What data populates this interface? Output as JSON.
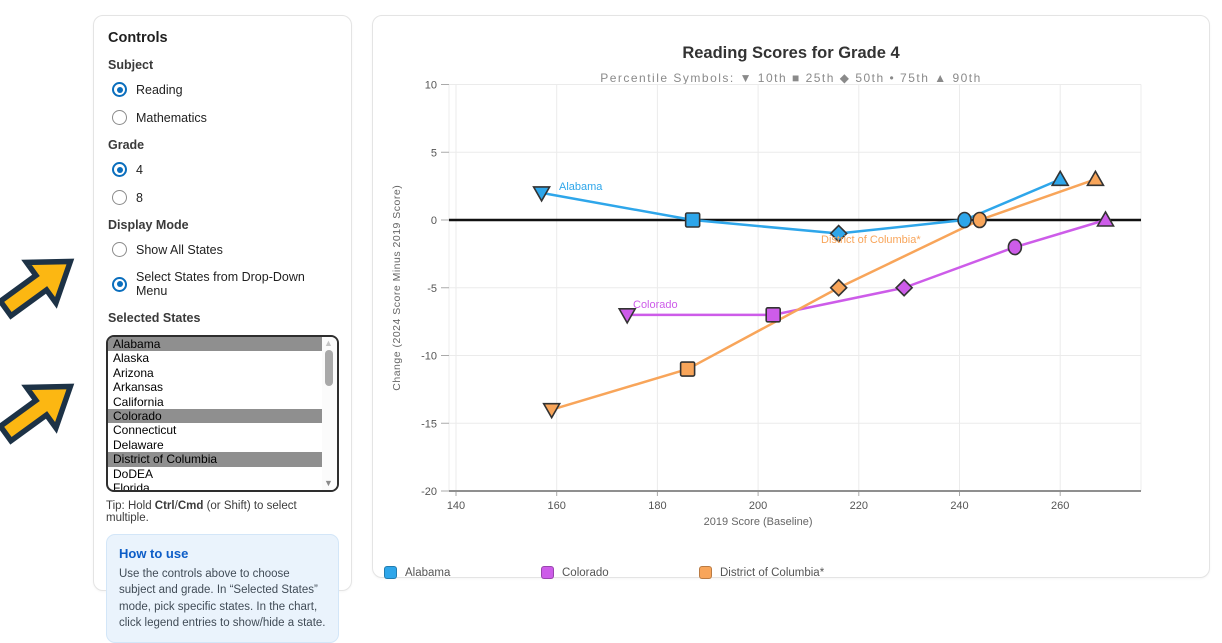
{
  "controls": {
    "title": "Controls",
    "subject": {
      "label": "Subject",
      "options": [
        {
          "label": "Reading",
          "selected": true
        },
        {
          "label": "Mathematics",
          "selected": false
        }
      ]
    },
    "grade": {
      "label": "Grade",
      "options": [
        {
          "label": "4",
          "selected": true
        },
        {
          "label": "8",
          "selected": false
        }
      ]
    },
    "display_mode": {
      "label": "Display Mode",
      "options": [
        {
          "label": "Show All States",
          "selected": false
        },
        {
          "label": "Select States from Drop-Down Menu",
          "selected": true
        }
      ]
    },
    "selected_states": {
      "label": "Selected States",
      "items": [
        {
          "label": "Alabama",
          "selected": true
        },
        {
          "label": "Alaska",
          "selected": false
        },
        {
          "label": "Arizona",
          "selected": false
        },
        {
          "label": "Arkansas",
          "selected": false
        },
        {
          "label": "California",
          "selected": false
        },
        {
          "label": "Colorado",
          "selected": true
        },
        {
          "label": "Connecticut",
          "selected": false
        },
        {
          "label": "Delaware",
          "selected": false
        },
        {
          "label": "District of Columbia",
          "selected": true
        },
        {
          "label": "DoDEA",
          "selected": false
        },
        {
          "label": "Florida",
          "selected": false
        }
      ],
      "tip": {
        "prefix": "Tip: Hold ",
        "bold1": "Ctrl",
        "separator": "/",
        "bold2": "Cmd",
        "suffix": " (or Shift) to select multiple."
      }
    },
    "how_to_use": {
      "title": "How to use",
      "body": "Use the controls above to choose subject and grade. In “Selected States” mode, pick specific states. In the chart, click legend entries to show/hide a state."
    }
  },
  "chart_data": {
    "type": "line",
    "title": "Reading Scores for Grade 4",
    "subtitle": "Percentile Symbols: ▼ 10th ■ 25th ◆ 50th • 75th ▲ 90th",
    "xlabel": "2019 Score (Baseline)",
    "ylabel": "Change (2024 Score Minus 2019 Score)",
    "xlim": [
      132,
      276
    ],
    "ylim": [
      -20,
      10
    ],
    "x_ticks": [
      140,
      160,
      180,
      200,
      220,
      240,
      260
    ],
    "y_ticks": [
      10,
      5,
      0,
      -5,
      -10,
      -15,
      -20
    ],
    "grid": true,
    "legend_position": "bottom",
    "percentiles": [
      "10th",
      "25th",
      "50th",
      "75th",
      "90th"
    ],
    "marker_shapes": [
      "triangle-down",
      "square",
      "diamond",
      "circle",
      "triangle-up"
    ],
    "series": [
      {
        "name": "Alabama",
        "color": "#2ea6ea",
        "points": [
          {
            "percentile": "10th",
            "x": 157,
            "y": 2
          },
          {
            "percentile": "25th",
            "x": 187,
            "y": 0
          },
          {
            "percentile": "50th",
            "x": 216,
            "y": -1
          },
          {
            "percentile": "75th",
            "x": 241,
            "y": 0
          },
          {
            "percentile": "90th",
            "x": 260,
            "y": 3
          }
        ]
      },
      {
        "name": "Colorado",
        "color": "#cd5ce9",
        "points": [
          {
            "percentile": "10th",
            "x": 174,
            "y": -7
          },
          {
            "percentile": "25th",
            "x": 203,
            "y": -7
          },
          {
            "percentile": "50th",
            "x": 229,
            "y": -5
          },
          {
            "percentile": "75th",
            "x": 251,
            "y": -2
          },
          {
            "percentile": "90th",
            "x": 269,
            "y": 0
          }
        ]
      },
      {
        "name": "District of Columbia*",
        "color": "#f8a55a",
        "points": [
          {
            "percentile": "10th",
            "x": 159,
            "y": -14
          },
          {
            "percentile": "25th",
            "x": 186,
            "y": -11
          },
          {
            "percentile": "50th",
            "x": 216,
            "y": -5
          },
          {
            "percentile": "75th",
            "x": 244,
            "y": 0
          },
          {
            "percentile": "90th",
            "x": 267,
            "y": 3
          }
        ]
      }
    ]
  },
  "legend": {
    "items": [
      {
        "label": "Alabama",
        "color": "#2ea6ea"
      },
      {
        "label": "Colorado",
        "color": "#cd5ce9"
      },
      {
        "label": "District of Columbia*",
        "color": "#f8a55a"
      }
    ]
  }
}
